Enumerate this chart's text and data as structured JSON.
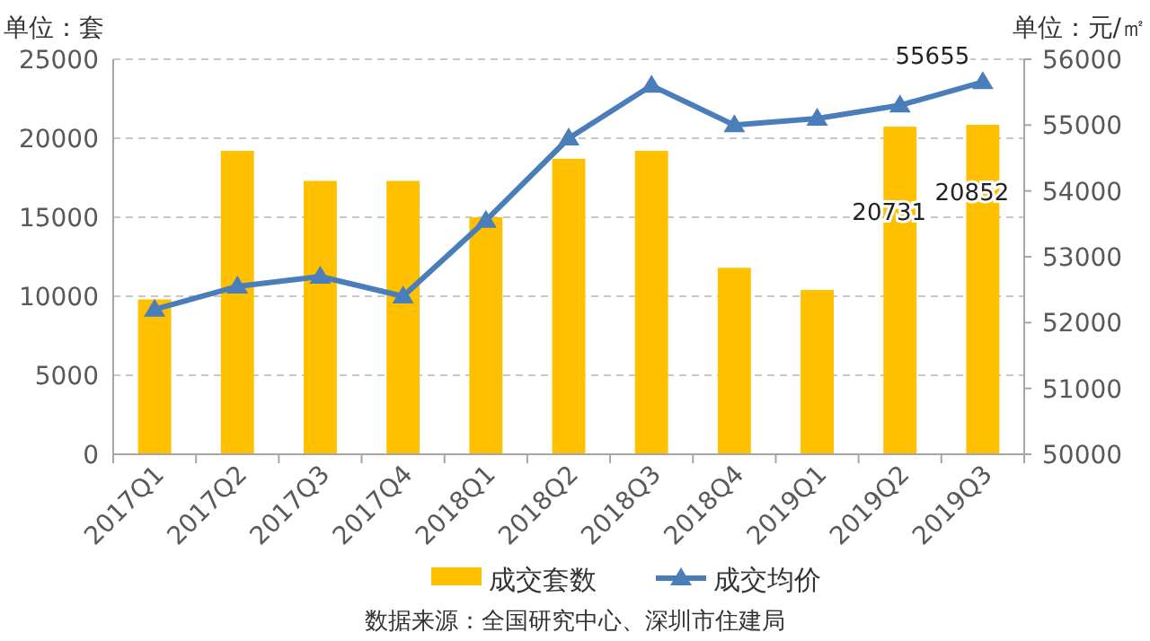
{
  "chart_data": {
    "type": "bar",
    "ylabel": "单位：套",
    "y2label": "单位：元/㎡",
    "annotations": [
      "数据来源：全国研究中心、深圳市住建局"
    ],
    "categories": [
      "2017Q1",
      "2017Q2",
      "2017Q3",
      "2017Q4",
      "2018Q1",
      "2018Q2",
      "2018Q3",
      "2018Q4",
      "2019Q1",
      "2019Q2",
      "2019Q3"
    ],
    "series": [
      {
        "name": "成交套数",
        "color": "#ffc000",
        "values": [
          9800,
          19200,
          17300,
          17300,
          15000,
          18700,
          19200,
          11800,
          10400,
          20731,
          20852
        ],
        "value_labels": [
          null,
          null,
          null,
          null,
          null,
          null,
          null,
          null,
          null,
          "20731",
          "20852"
        ]
      },
      {
        "name": "成交均价",
        "type": "line",
        "axis": "y2",
        "color": "#4a7ebb",
        "marker": "triangle",
        "values": [
          52200,
          52550,
          52700,
          52400,
          53550,
          54800,
          55600,
          55000,
          55100,
          55300,
          55655
        ],
        "value_labels": [
          null,
          null,
          null,
          null,
          null,
          null,
          null,
          null,
          null,
          null,
          "55655"
        ]
      }
    ],
    "ylim": [
      0,
      25000
    ],
    "yticks": [
      0,
      5000,
      10000,
      15000,
      20000,
      25000
    ],
    "y2lim": [
      50000,
      56000
    ],
    "y2ticks": [
      50000,
      51000,
      52000,
      53000,
      54000,
      55000,
      56000
    ],
    "grid": "y",
    "legend": "bottom"
  }
}
